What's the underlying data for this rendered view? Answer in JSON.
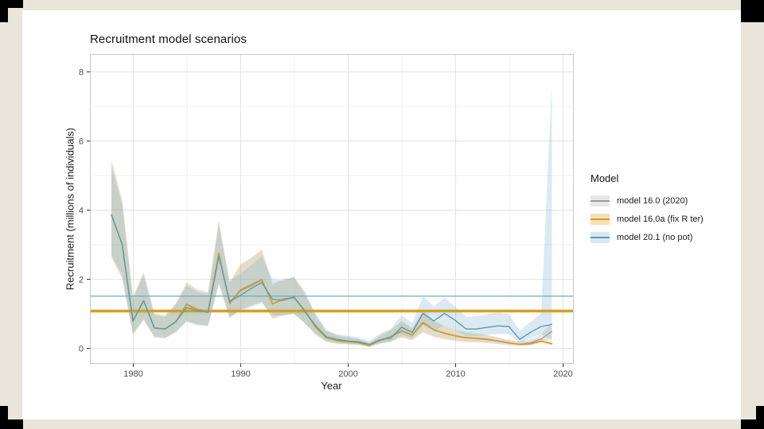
{
  "page": {
    "background_color": "#eae5da",
    "card_color": "#ffffff",
    "corner_mark_color": "#000000"
  },
  "chart_data": {
    "type": "line",
    "title": "Recruitment model scenarios",
    "xlabel": "Year",
    "ylabel": "Recruitment (millions of individuals)",
    "legend_title": "Model",
    "legend_position": "right",
    "grid": true,
    "xlim": [
      1976,
      2021
    ],
    "ylim": [
      -0.45,
      8.5
    ],
    "x_ticks": [
      1980,
      1990,
      2000,
      2010,
      2020
    ],
    "x_minor_ticks": [
      1985,
      1995,
      2005,
      2015
    ],
    "y_ticks": [
      0,
      2,
      4,
      6,
      8
    ],
    "y_minor_ticks": [
      1,
      3,
      5,
      7
    ],
    "years": [
      1978,
      1979,
      1980,
      1981,
      1982,
      1983,
      1984,
      1985,
      1986,
      1987,
      1988,
      1989,
      1990,
      1991,
      1992,
      1993,
      1994,
      1995,
      1996,
      1997,
      1998,
      1999,
      2000,
      2001,
      2002,
      2003,
      2004,
      2005,
      2006,
      2007,
      2008,
      2009,
      2010,
      2011,
      2012,
      2013,
      2014,
      2015,
      2016,
      2017,
      2018,
      2019
    ],
    "series": [
      {
        "name": "model 16.0 (2020)",
        "line_color": "#9b9b9b",
        "band_color": "rgba(110,110,95,0.16)",
        "key_fill": "#e8e8e8",
        "line_width": 1.2,
        "ref_line": null,
        "values": [
          3.85,
          3.0,
          0.78,
          1.37,
          0.58,
          0.55,
          0.76,
          1.25,
          1.1,
          1.05,
          2.72,
          1.28,
          1.65,
          1.8,
          1.96,
          1.28,
          1.4,
          1.45,
          1.08,
          0.6,
          0.3,
          0.21,
          0.18,
          0.15,
          0.07,
          0.21,
          0.32,
          0.48,
          0.37,
          0.72,
          0.52,
          0.42,
          0.34,
          0.29,
          0.27,
          0.24,
          0.19,
          0.14,
          0.11,
          0.15,
          0.26,
          0.48
        ],
        "lo": [
          2.6,
          2.0,
          0.38,
          0.8,
          0.3,
          0.28,
          0.45,
          0.78,
          0.68,
          0.65,
          1.85,
          0.85,
          1.1,
          1.22,
          1.33,
          0.85,
          0.95,
          0.98,
          0.72,
          0.38,
          0.18,
          0.12,
          0.1,
          0.08,
          0.03,
          0.12,
          0.18,
          0.3,
          0.22,
          0.45,
          0.32,
          0.26,
          0.2,
          0.17,
          0.16,
          0.14,
          0.11,
          0.08,
          0.06,
          0.08,
          0.16,
          0.28
        ],
        "hi": [
          5.45,
          4.3,
          1.5,
          2.2,
          1.0,
          0.95,
          1.3,
          1.9,
          1.7,
          1.62,
          3.7,
          1.9,
          2.4,
          2.6,
          2.85,
          1.85,
          2.0,
          2.05,
          1.65,
          0.95,
          0.5,
          0.37,
          0.32,
          0.27,
          0.15,
          0.36,
          0.52,
          0.78,
          0.58,
          1.1,
          0.8,
          0.65,
          0.53,
          0.46,
          0.42,
          0.38,
          0.31,
          0.24,
          0.19,
          0.25,
          0.4,
          0.75
        ]
      },
      {
        "name": "model 16.0a (fix R ter)",
        "line_color": "#d29c2a",
        "band_color": "rgba(212,160,50,0.16)",
        "key_fill": "#f6e0b5",
        "line_width": 1.6,
        "ref_line": 1.07,
        "ref_width": 3.5,
        "ref_color": "#d2a024",
        "values": [
          3.85,
          3.0,
          0.78,
          1.37,
          0.58,
          0.55,
          0.76,
          1.27,
          1.12,
          1.06,
          2.75,
          1.3,
          1.68,
          1.83,
          1.98,
          1.27,
          1.42,
          1.46,
          1.09,
          0.6,
          0.3,
          0.21,
          0.18,
          0.15,
          0.07,
          0.22,
          0.33,
          0.5,
          0.38,
          0.74,
          0.53,
          0.43,
          0.35,
          0.3,
          0.28,
          0.25,
          0.2,
          0.15,
          0.1,
          0.12,
          0.2,
          0.12
        ],
        "lo": [
          2.65,
          2.05,
          0.4,
          0.82,
          0.31,
          0.29,
          0.46,
          0.8,
          0.7,
          0.66,
          1.9,
          0.87,
          1.13,
          1.25,
          1.36,
          0.84,
          0.96,
          0.99,
          0.73,
          0.38,
          0.18,
          0.12,
          0.1,
          0.08,
          0.03,
          0.12,
          0.19,
          0.31,
          0.22,
          0.46,
          0.33,
          0.26,
          0.21,
          0.18,
          0.17,
          0.15,
          0.12,
          0.08,
          0.06,
          0.07,
          0.12,
          0.07
        ],
        "hi": [
          5.4,
          4.25,
          1.45,
          2.15,
          0.97,
          0.92,
          1.27,
          1.87,
          1.67,
          1.6,
          3.66,
          1.87,
          2.43,
          2.62,
          2.83,
          1.8,
          1.98,
          2.02,
          1.6,
          0.92,
          0.48,
          0.35,
          0.3,
          0.25,
          0.14,
          0.34,
          0.5,
          0.76,
          0.56,
          1.05,
          0.77,
          0.62,
          0.5,
          0.43,
          0.4,
          0.36,
          0.29,
          0.23,
          0.17,
          0.2,
          0.3,
          0.2
        ]
      },
      {
        "name": "model 20.1 (no pot)",
        "line_color": "#5b9bad",
        "band_color": "rgba(115,175,205,0.26)",
        "key_fill": "#d9e9f2",
        "line_width": 1.4,
        "ref_line": 1.5,
        "ref_width": 1.3,
        "ref_color": "#66adc4",
        "values": [
          3.85,
          3.0,
          0.78,
          1.37,
          0.58,
          0.55,
          0.76,
          1.17,
          1.08,
          1.03,
          2.65,
          1.35,
          1.52,
          1.72,
          1.89,
          1.41,
          1.38,
          1.48,
          1.05,
          0.65,
          0.32,
          0.25,
          0.2,
          0.18,
          0.1,
          0.24,
          0.28,
          0.6,
          0.45,
          1.0,
          0.78,
          1.0,
          0.8,
          0.55,
          0.55,
          0.6,
          0.64,
          0.62,
          0.25,
          0.45,
          0.62,
          0.68
        ],
        "lo": [
          2.7,
          2.1,
          0.42,
          0.85,
          0.33,
          0.3,
          0.48,
          0.75,
          0.65,
          0.63,
          1.88,
          0.9,
          1.06,
          1.18,
          1.3,
          0.95,
          0.93,
          1.0,
          0.7,
          0.42,
          0.2,
          0.15,
          0.12,
          0.1,
          0.05,
          0.14,
          0.17,
          0.38,
          0.28,
          0.65,
          0.5,
          0.65,
          0.52,
          0.35,
          0.35,
          0.38,
          0.41,
          0.4,
          0.15,
          0.28,
          0.4,
          0.2
        ],
        "hi": [
          5.2,
          4.15,
          1.42,
          2.1,
          0.95,
          0.9,
          1.25,
          1.8,
          1.62,
          1.55,
          3.55,
          1.95,
          2.15,
          2.4,
          2.65,
          2.0,
          1.95,
          2.05,
          1.55,
          1.0,
          0.52,
          0.4,
          0.35,
          0.3,
          0.2,
          0.42,
          0.55,
          0.95,
          0.72,
          1.5,
          1.2,
          1.45,
          1.2,
          0.9,
          0.92,
          0.98,
          1.02,
          0.98,
          0.5,
          0.75,
          1.0,
          7.7
        ]
      }
    ],
    "style": {
      "grid_major_color": "#e4e4e4",
      "grid_minor_color": "#f1f1f1",
      "panel_border_color": "#c8c8c8",
      "tick_color": "#333333",
      "tick_label_color": "#4d4d4d"
    }
  }
}
